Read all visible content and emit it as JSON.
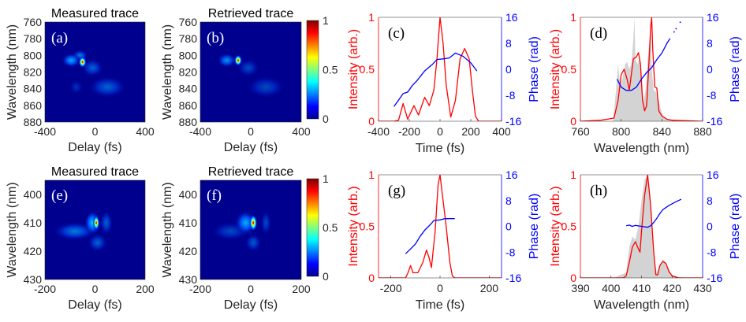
{
  "chart_data": [
    {
      "panel": "(a)",
      "type": "heatmap",
      "title": "Measured trace",
      "xlabel": "Delay (fs)",
      "ylabel": "Wavelength (nm)",
      "xlim": [
        -400,
        400
      ],
      "ylim": [
        760,
        880
      ],
      "xticks": [
        -400,
        0,
        400
      ],
      "yticks": [
        760,
        780,
        800,
        820,
        840,
        860,
        880
      ],
      "blobs": [
        {
          "x": -100,
          "y": 808,
          "amp": 1.0,
          "sx": 14,
          "sy": 3
        },
        {
          "x": -190,
          "y": 806,
          "amp": 0.35,
          "sx": 35,
          "sy": 4
        },
        {
          "x": -120,
          "y": 800,
          "amp": 0.25,
          "sx": 30,
          "sy": 3
        },
        {
          "x": -20,
          "y": 815,
          "amp": 0.2,
          "sx": 40,
          "sy": 5
        },
        {
          "x": 100,
          "y": 838,
          "amp": 0.2,
          "sx": 70,
          "sy": 6
        },
        {
          "x": -150,
          "y": 838,
          "amp": 0.1,
          "sx": 25,
          "sy": 4
        }
      ]
    },
    {
      "panel": "(b)",
      "type": "heatmap",
      "title": "Retrieved trace",
      "xlabel": "Delay (fs)",
      "ylabel": "Wavelength (nm)",
      "xlim": [
        -400,
        400
      ],
      "ylim": [
        760,
        880
      ],
      "xticks": [
        -400,
        0,
        400
      ],
      "yticks": [
        760,
        780,
        800,
        820,
        840,
        860,
        880
      ],
      "colorbar": {
        "ticks": [
          0,
          0.5,
          1
        ]
      },
      "blobs": [
        {
          "x": -100,
          "y": 806,
          "amp": 1.0,
          "sx": 14,
          "sy": 3
        },
        {
          "x": -190,
          "y": 806,
          "amp": 0.3,
          "sx": 35,
          "sy": 4
        },
        {
          "x": -20,
          "y": 815,
          "amp": 0.15,
          "sx": 40,
          "sy": 5
        },
        {
          "x": 120,
          "y": 838,
          "amp": 0.15,
          "sx": 70,
          "sy": 6
        }
      ]
    },
    {
      "panel": "(c)",
      "type": "line",
      "xlabel": "Time (fs)",
      "ylabel_left": "Intensity (arb.)",
      "ylabel_right": "Phase (rad)",
      "xlim": [
        -400,
        400
      ],
      "ylim_left": [
        0,
        1
      ],
      "ylim_right": [
        -16,
        16
      ],
      "xticks": [
        -400,
        -200,
        0,
        200,
        400
      ],
      "yticks_left": [
        0,
        0.5,
        1
      ],
      "yticks_right": [
        -16,
        -8,
        0,
        8,
        16
      ],
      "intensity": {
        "x": [
          -400,
          -300,
          -270,
          -240,
          -210,
          -170,
          -140,
          -100,
          -70,
          -40,
          -20,
          0,
          20,
          40,
          70,
          100,
          130,
          160,
          190,
          210,
          230,
          250,
          400
        ],
        "y": [
          0,
          0,
          0.01,
          0.17,
          0.02,
          0.15,
          0.06,
          0.23,
          0.15,
          0.3,
          0.6,
          1.0,
          0.75,
          0.35,
          0.04,
          0.2,
          0.6,
          0.7,
          0.6,
          0.3,
          0.05,
          0,
          0
        ]
      },
      "phase": {
        "x": [
          -300,
          -270,
          -240,
          -210,
          -180,
          -150,
          -100,
          -50,
          -20,
          20,
          60,
          100,
          150,
          200,
          240
        ],
        "y": [
          -11.5,
          -9.5,
          -7.5,
          -7,
          -5,
          -3.5,
          -0.5,
          1.5,
          3,
          3.2,
          3.5,
          5,
          4,
          2,
          -0.5
        ]
      }
    },
    {
      "panel": "(d)",
      "type": "line",
      "xlabel": "Wavelength (nm)",
      "ylabel_left": "Intensity (arb.)",
      "ylabel_right": "Phase (rad)",
      "xlim": [
        760,
        880
      ],
      "ylim_left": [
        0,
        1
      ],
      "ylim_right": [
        -16,
        16
      ],
      "xticks": [
        760,
        800,
        840,
        880
      ],
      "yticks_left": [
        0,
        0.5,
        1
      ],
      "yticks_right": [
        -16,
        -8,
        0,
        8,
        16
      ],
      "measured_spectrum": {
        "x": [
          760,
          792,
          795,
          797,
          799,
          801,
          804,
          806,
          808,
          810,
          812,
          813,
          814,
          816,
          818,
          820,
          822,
          824,
          826,
          828,
          829,
          830,
          832,
          834,
          836,
          838,
          840,
          843,
          860,
          880
        ],
        "y": [
          0,
          0,
          0.3,
          0.55,
          0.35,
          0.4,
          0.55,
          0.57,
          0.5,
          0.55,
          0.8,
          1.0,
          0.6,
          0.55,
          0.6,
          0.4,
          0.2,
          0.3,
          0.6,
          0.8,
          0.95,
          0.5,
          0.3,
          0.28,
          0.25,
          0.15,
          0.08,
          0.02,
          0,
          0
        ]
      },
      "intensity": {
        "x": [
          760,
          780,
          793,
          797,
          800,
          803,
          806,
          808,
          810,
          812,
          815,
          817,
          819,
          821,
          823,
          825,
          827,
          829,
          830,
          831,
          833,
          835,
          837,
          840,
          845,
          850,
          880
        ],
        "y": [
          0,
          0.01,
          0.03,
          0.2,
          0.45,
          0.5,
          0.4,
          0.3,
          0.45,
          0.6,
          0.62,
          0.66,
          0.55,
          0.2,
          0.1,
          0.15,
          0.5,
          0.9,
          1.0,
          0.7,
          0.33,
          0.32,
          0.1,
          0.05,
          0.02,
          0.01,
          0
        ]
      },
      "phase": {
        "x": [
          796,
          800,
          805,
          810,
          815,
          820,
          825,
          830,
          835,
          840,
          845,
          848
        ],
        "y": [
          -3,
          -5.5,
          -6.5,
          -6.5,
          -5.5,
          -3,
          -1,
          0.5,
          3,
          5,
          8,
          9.5
        ]
      },
      "phase_sparse": {
        "x": [
          852,
          854,
          858
        ],
        "y": [
          11.5,
          12.5,
          14.5
        ]
      }
    },
    {
      "panel": "(e)",
      "type": "heatmap",
      "title": "Measured trace",
      "xlabel": "Delay (fs)",
      "ylabel": "Wavelength (nm)",
      "xlim": [
        -200,
        200
      ],
      "ylim": [
        395,
        430
      ],
      "xticks": [
        -200,
        0,
        200
      ],
      "yticks": [
        400,
        410,
        420,
        430
      ],
      "blobs": [
        {
          "x": 5,
          "y": 410,
          "amp": 1.0,
          "sx": 6,
          "sy": 1.2
        },
        {
          "x": -10,
          "y": 410,
          "amp": 0.4,
          "sx": 15,
          "sy": 2
        },
        {
          "x": -80,
          "y": 413,
          "amp": 0.25,
          "sx": 40,
          "sy": 1.5
        },
        {
          "x": 10,
          "y": 417,
          "amp": 0.2,
          "sx": 18,
          "sy": 1.5
        },
        {
          "x": 45,
          "y": 410,
          "amp": 0.2,
          "sx": 12,
          "sy": 2
        }
      ]
    },
    {
      "panel": "(f)",
      "type": "heatmap",
      "title": "Retrieved trace",
      "xlabel": "Delay (fs)",
      "ylabel": "Wavelength (nm)",
      "xlim": [
        -200,
        200
      ],
      "ylim": [
        395,
        430
      ],
      "xticks": [
        -200,
        0,
        200
      ],
      "yticks": [
        400,
        410,
        420,
        430
      ],
      "colorbar": {
        "ticks": [
          0,
          0.5,
          1
        ]
      },
      "blobs": [
        {
          "x": 10,
          "y": 410,
          "amp": 1.0,
          "sx": 7,
          "sy": 1.3
        },
        {
          "x": -20,
          "y": 410,
          "amp": 0.35,
          "sx": 20,
          "sy": 2
        },
        {
          "x": -80,
          "y": 413,
          "amp": 0.15,
          "sx": 35,
          "sy": 1.5
        },
        {
          "x": 10,
          "y": 417,
          "amp": 0.18,
          "sx": 15,
          "sy": 1.5
        },
        {
          "x": 60,
          "y": 410,
          "amp": 0.15,
          "sx": 10,
          "sy": 2
        }
      ]
    },
    {
      "panel": "(g)",
      "type": "line",
      "xlabel": "Time (fs)",
      "ylabel_left": "Intensity (arb.)",
      "ylabel_right": "Phase (rad)",
      "xlim": [
        -250,
        250
      ],
      "ylim_left": [
        0,
        1
      ],
      "ylim_right": [
        -16,
        16
      ],
      "xticks": [
        -200,
        0,
        200
      ],
      "yticks_left": [
        0,
        0.5,
        1
      ],
      "yticks_right": [
        -16,
        -8,
        0,
        8,
        16
      ],
      "intensity": {
        "x": [
          -250,
          -140,
          -130,
          -120,
          -110,
          -90,
          -70,
          -55,
          -45,
          -35,
          -20,
          -8,
          0,
          10,
          25,
          40,
          50,
          60,
          250
        ],
        "y": [
          0,
          0,
          0.05,
          0.12,
          0.05,
          0.05,
          0.15,
          0.27,
          0.2,
          0.1,
          0.45,
          0.9,
          1.0,
          0.8,
          0.5,
          0.15,
          0.02,
          0,
          0
        ]
      },
      "phase": {
        "x": [
          -140,
          -120,
          -100,
          -80,
          -60,
          -40,
          -25,
          0,
          20,
          60
        ],
        "y": [
          -8.5,
          -7,
          -5.5,
          -3,
          -1,
          0.5,
          1.8,
          2,
          2.4,
          2.4
        ]
      }
    },
    {
      "panel": "(h)",
      "type": "line",
      "xlabel": "Wavelength (nm)",
      "ylabel_left": "Intensity (arb.)",
      "ylabel_right": "Phase (rad)",
      "xlim": [
        390,
        430
      ],
      "ylim_left": [
        0,
        1
      ],
      "ylim_right": [
        -16,
        16
      ],
      "xticks": [
        390,
        400,
        410,
        420,
        430
      ],
      "yticks_left": [
        0,
        0.5,
        1
      ],
      "yticks_right": [
        -16,
        -8,
        0,
        8,
        16
      ],
      "measured_spectrum": {
        "x": [
          390,
          401,
          403,
          405,
          406,
          407,
          408,
          409,
          410,
          411,
          412,
          413,
          414,
          415,
          416,
          417,
          418,
          419,
          420,
          422,
          425,
          430
        ],
        "y": [
          0,
          0,
          0.03,
          0.05,
          0.3,
          0.4,
          0.37,
          0.5,
          0.75,
          0.95,
          1.0,
          0.75,
          0.2,
          0.05,
          0.12,
          0.18,
          0.15,
          0.08,
          0.03,
          0.01,
          0,
          0
        ]
      },
      "intensity": {
        "x": [
          390,
          404,
          405,
          406,
          407,
          408,
          409,
          409.5,
          410,
          411,
          412,
          413,
          414,
          414.7,
          415.3,
          416,
          417,
          418,
          419,
          420,
          422,
          430
        ],
        "y": [
          0,
          0,
          0.02,
          0.15,
          0.3,
          0.35,
          0.28,
          0.25,
          0.45,
          0.8,
          1.0,
          0.7,
          0.25,
          0.03,
          0.03,
          0.12,
          0.16,
          0.14,
          0.06,
          0.02,
          0,
          0
        ]
      },
      "phase": {
        "x": [
          405,
          406,
          407,
          408,
          410,
          412,
          413,
          414,
          415,
          416,
          417,
          419,
          421,
          423
        ],
        "y": [
          0.2,
          0.4,
          0,
          0.3,
          0,
          -0.3,
          0.2,
          1.2,
          2.5,
          4,
          5.2,
          6.5,
          7.5,
          8.4
        ]
      }
    }
  ],
  "colors": {
    "intensity": "#ff0000",
    "phase": "#0000ff",
    "spectrum": "#d3d3d3",
    "heat_background": "#00008f"
  }
}
